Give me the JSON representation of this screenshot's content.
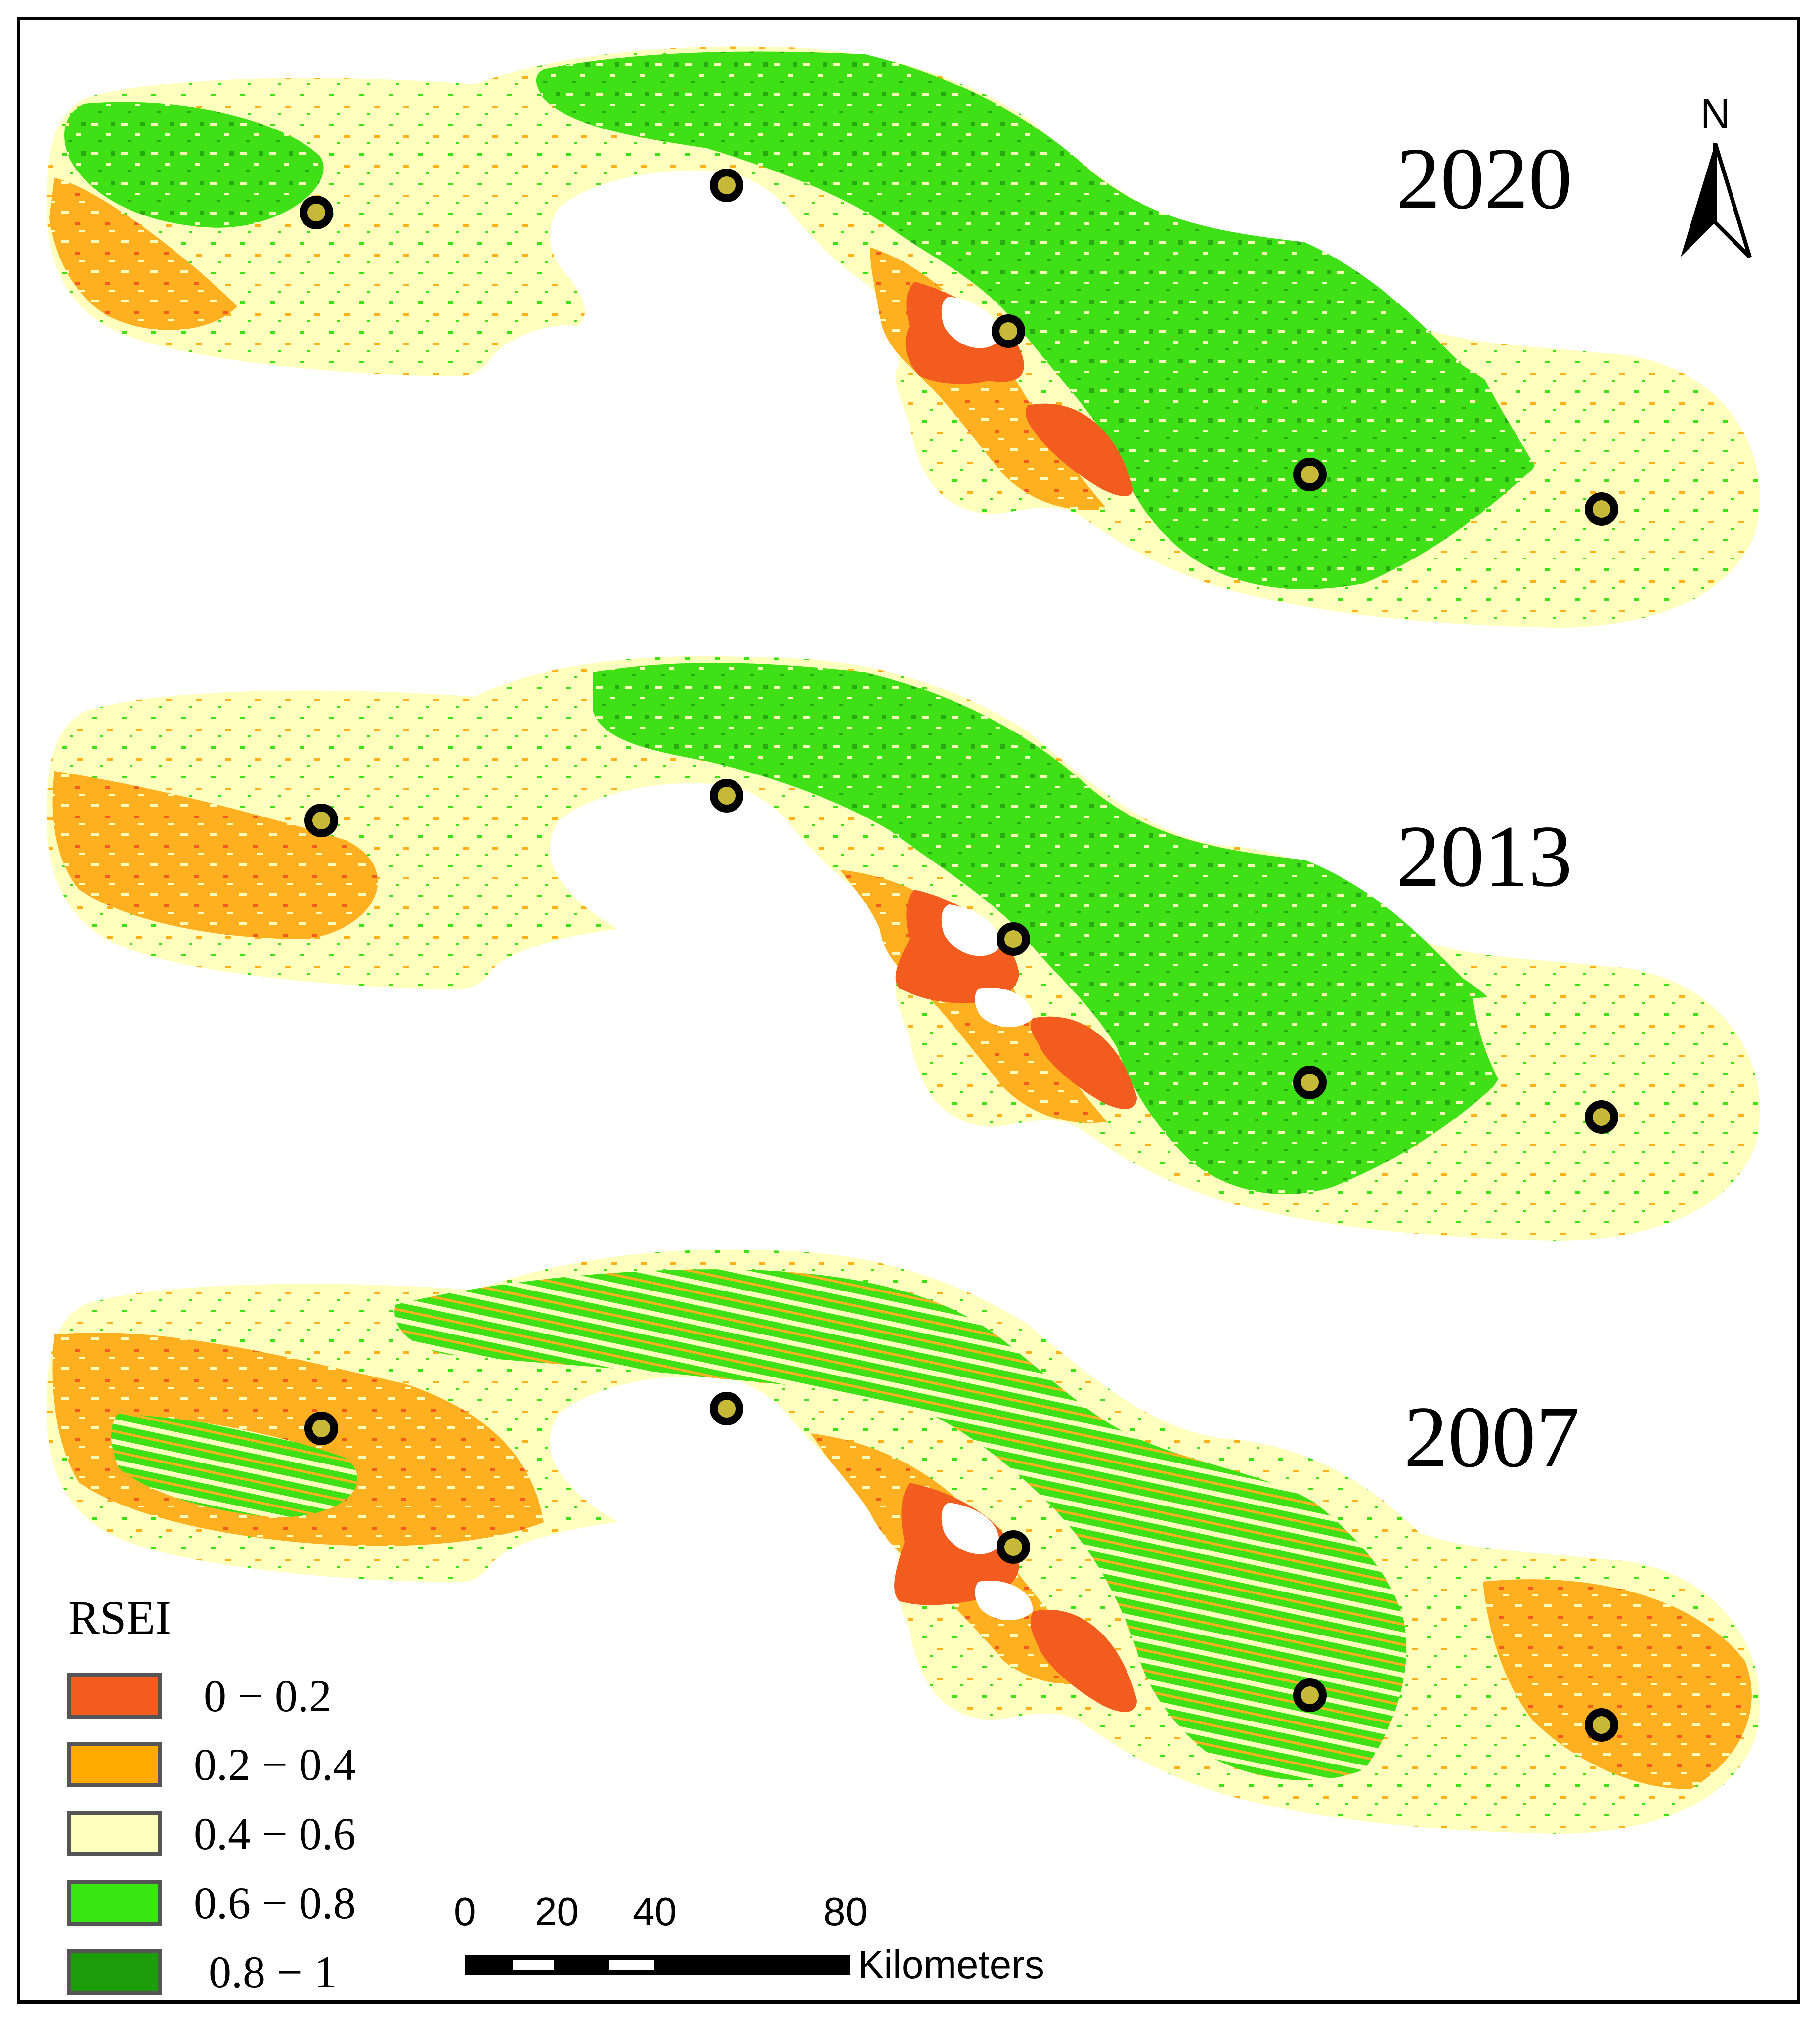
{
  "maps": [
    {
      "year": "2020"
    },
    {
      "year": "2013"
    },
    {
      "year": "2007"
    }
  ],
  "north_arrow": {
    "letter": "N"
  },
  "legend": {
    "title": "RSEI",
    "classes": [
      {
        "label": "0 − 0.2",
        "color": "#f25c1e"
      },
      {
        "label": "0.2 − 0.4",
        "color": "#ffaa00"
      },
      {
        "label": "0.4 − 0.6",
        "color": "#ffffbe"
      },
      {
        "label": "0.6 − 0.8",
        "color": "#38e612"
      },
      {
        "label": "0.8 − 1",
        "color": "#1c9e0c"
      }
    ]
  },
  "scale_bar": {
    "ticks": [
      "0",
      "20",
      "40",
      "80"
    ],
    "unit": "Kilometers"
  },
  "colors": {
    "marker_ring": "#000000",
    "marker_fill": "#c8b838"
  }
}
